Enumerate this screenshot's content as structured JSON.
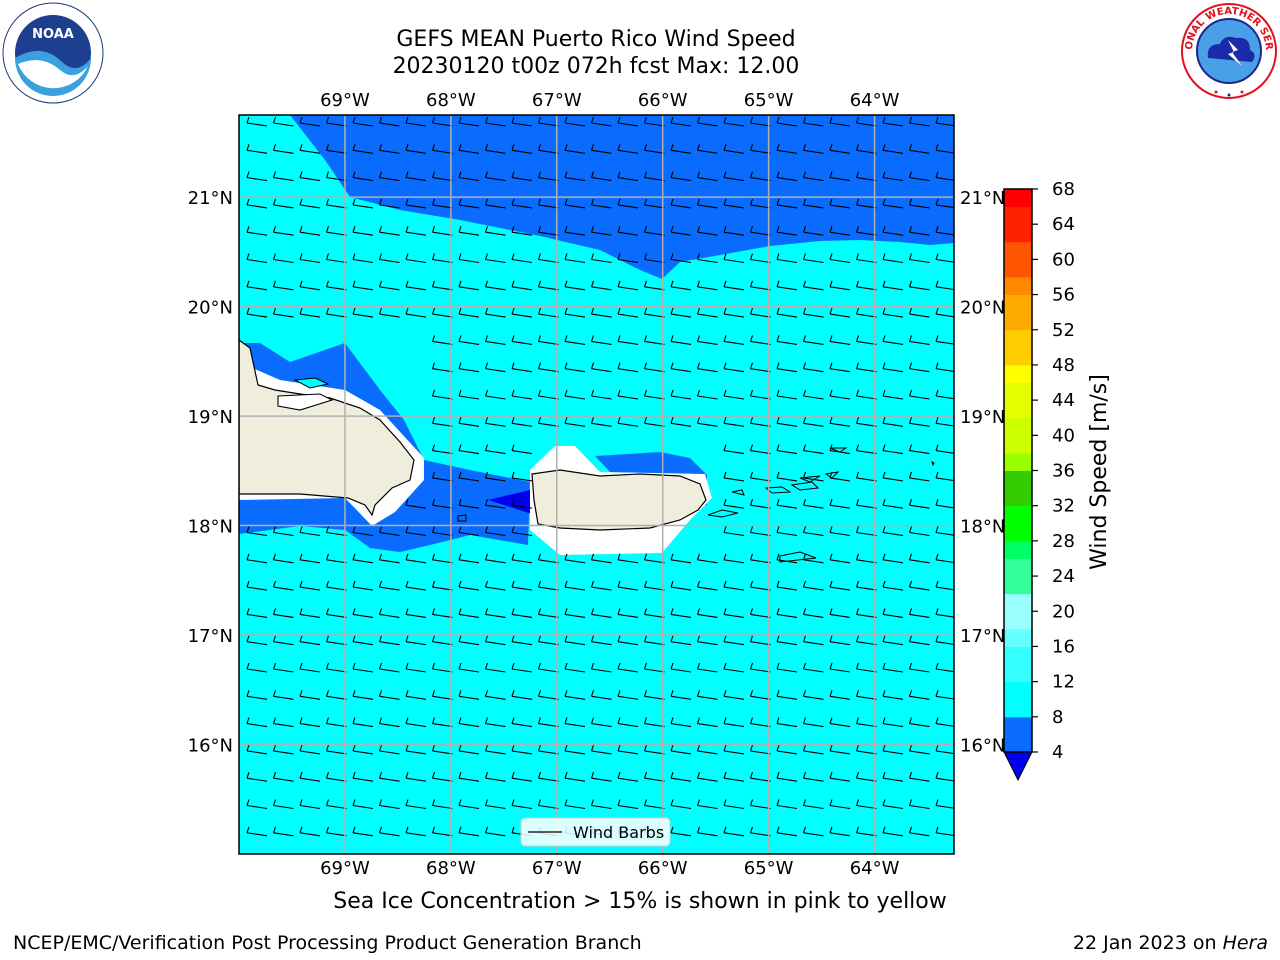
{
  "title_line1": "GEFS MEAN Puerto Rico Wind Speed",
  "title_line2": "20230120 t00z 072h fcst   Max: 12.00",
  "note": "Sea Ice Concentration > 15% is shown in pink to yellow",
  "footer_left": "NCEP/EMC/Verification Post Processing Product Generation Branch",
  "footer_date": "22 Jan 2023 on ",
  "footer_host": "Hera",
  "legend_label": "Wind Barbs",
  "colorbar_label": "Wind Speed [m/s]",
  "colorbar_ticks": [
    "4",
    "8",
    "12",
    "16",
    "20",
    "24",
    "28",
    "32",
    "36",
    "40",
    "44",
    "48",
    "52",
    "56",
    "60",
    "64",
    "68"
  ],
  "colorbar_colors": [
    "#0a6cff",
    "#00ffff",
    "#33ffff",
    "#66ffff",
    "#99ffff",
    "#33ff99",
    "#00ff66",
    "#00ff00",
    "#33cc00",
    "#99ff00",
    "#ccff00",
    "#e6ff00",
    "#ffff00",
    "#ffcc00",
    "#ffaa00",
    "#ff8800",
    "#ff5500",
    "#ff2200",
    "#ff0000"
  ],
  "lon_labels": [
    "69°W",
    "68°W",
    "67°W",
    "66°W",
    "65°W",
    "64°W"
  ],
  "lat_labels": [
    "21°N",
    "20°N",
    "19°N",
    "18°N",
    "17°N",
    "16°N"
  ],
  "colors": {
    "ocean_light": "#00ffff",
    "ocean_mid": "#0a6cff",
    "ocean_dark": "#0000ee",
    "land": "#efeedc",
    "grid": "#b0b0b0"
  },
  "logos": {
    "left": "NOAA",
    "right": "NATIONAL WEATHER SERVICE"
  },
  "chart_data": {
    "type": "map",
    "region": "Puerto Rico",
    "variable": "Wind Speed",
    "units": "m/s",
    "max": 12.0,
    "lon_range": [
      -70,
      -63.25
    ],
    "lat_range": [
      15,
      21.75
    ],
    "colorbar_levels": [
      4,
      8,
      12,
      16,
      20,
      24,
      28,
      32,
      36,
      40,
      44,
      48,
      52,
      56,
      60,
      64,
      68
    ]
  }
}
